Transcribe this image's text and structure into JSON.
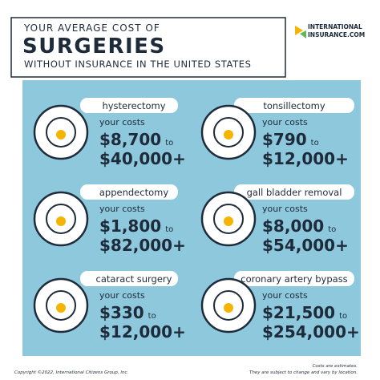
{
  "header": {
    "line1": "YOUR AVERAGE COST OF",
    "title": "SURGERIES",
    "line3": "WITHOUT INSURANCE IN THE UNITED STATES"
  },
  "logo": {
    "line1": "INTERNATIONAL",
    "line2": "INSURANCE.COM"
  },
  "items": [
    {
      "name": "hysterectomy",
      "label": "your costs",
      "low": "$8,700",
      "to": "to",
      "high": "$40,000+"
    },
    {
      "name": "tonsillectomy",
      "label": "your costs",
      "low": "$790",
      "to": "to",
      "high": "$12,000+"
    },
    {
      "name": "appendectomy",
      "label": "your costs",
      "low": "$1,800",
      "to": "to",
      "high": "$82,000+"
    },
    {
      "name": "gall bladder removal",
      "label": "your costs",
      "low": "$8,000",
      "to": "to",
      "high": "$54,000+"
    },
    {
      "name": "cataract surgery",
      "label": "your costs",
      "low": "$330",
      "to": "to",
      "high": "$12,000+"
    },
    {
      "name": "coronary artery bypass",
      "label": "your costs",
      "low": "$21,500",
      "to": "to",
      "high": "$254,000+"
    }
  ],
  "footer": {
    "copyright": "Copyright ©2022, International Citizens Group, Inc.",
    "note1": "Costs are estimates.",
    "note2": "They are subject to change and vary by location."
  }
}
